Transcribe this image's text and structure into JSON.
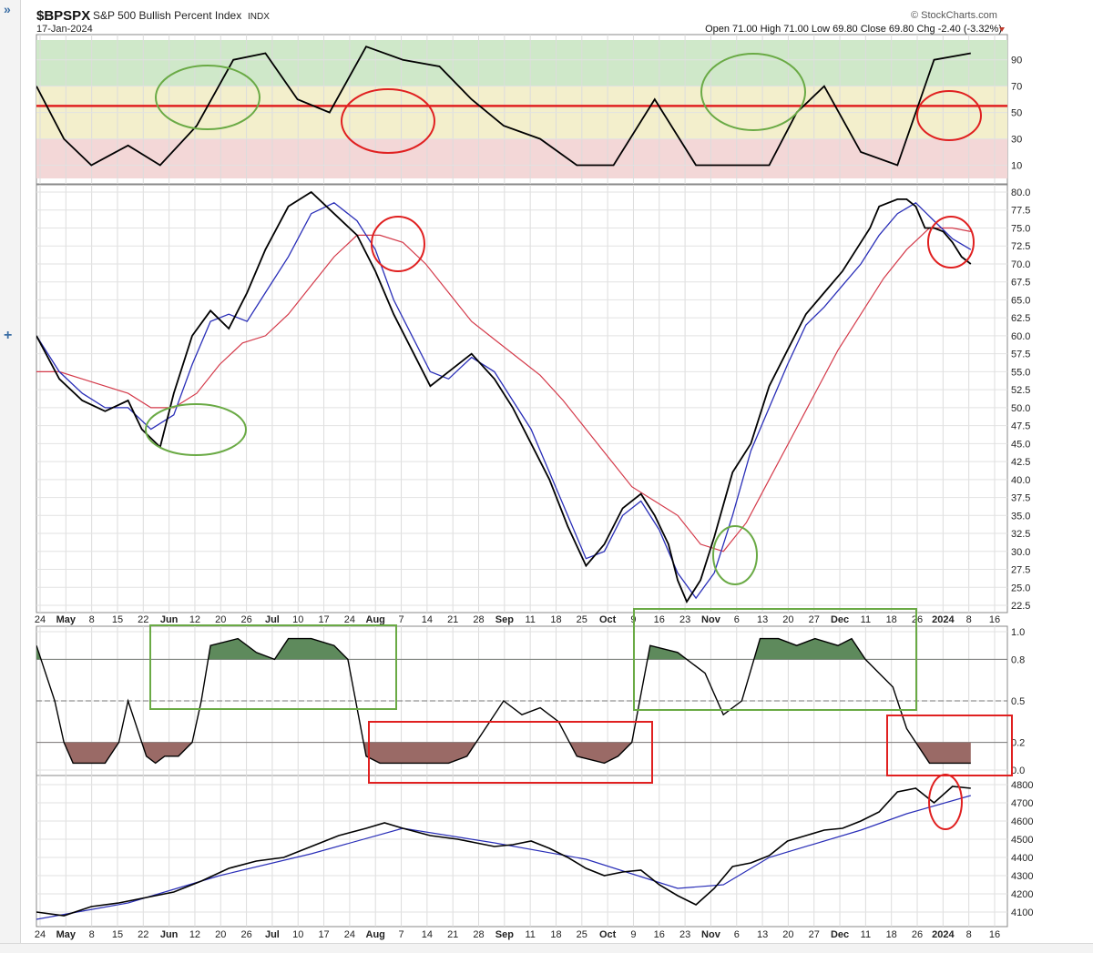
{
  "header": {
    "symbol": "$BPSPX",
    "name": "S&P 500 Bullish Percent Index",
    "exchange": "INDX",
    "date": "17-Jan-2024",
    "brand": "© StockCharts.com",
    "ohlc": "Open 71.00  High 71.00  Low 69.80  Close 69.80  Chg -2.40 (-3.32%)"
  },
  "axis_dates": [
    "24",
    "May",
    "8",
    "15",
    "22",
    "Jun",
    "12",
    "20",
    "26",
    "Jul",
    "10",
    "17",
    "24",
    "Aug",
    "7",
    "14",
    "21",
    "28",
    "Sep",
    "11",
    "18",
    "25",
    "Oct",
    "9",
    "16",
    "23",
    "Nov",
    "6",
    "13",
    "20",
    "27",
    "Dec",
    "11",
    "18",
    "26",
    "2024",
    "8",
    "16"
  ],
  "colors": {
    "price": "#000000",
    "fast_ma": "#2a2fb8",
    "slow_ma": "#d43a4a",
    "bull_zone": "#cfe8c9",
    "neutral_zone": "#f3efcc",
    "bear_zone": "#f3d7d7",
    "annotation_green": "#6aaa45",
    "annotation_red": "#e02020",
    "osc_up_fill": "#5e8a5c",
    "osc_down_fill": "#9a6a66"
  },
  "chart_data": [
    {
      "type": "line",
      "panel": "top",
      "x": [
        0,
        6,
        12,
        20,
        27,
        35,
        43,
        50,
        57,
        64,
        72,
        80,
        88,
        95,
        102,
        110,
        118,
        126,
        135,
        144,
        152,
        160,
        166,
        172,
        180,
        188,
        196,
        204
      ],
      "y": [
        70,
        30,
        10,
        25,
        10,
        40,
        90,
        95,
        60,
        50,
        100,
        90,
        85,
        60,
        40,
        30,
        10,
        10,
        60,
        10,
        10,
        10,
        50,
        70,
        20,
        10,
        90,
        95
      ],
      "ylim": [
        0,
        105
      ],
      "ticks": [
        "90",
        "70",
        "50",
        "30",
        "10"
      ],
      "reference_line": 55
    },
    {
      "type": "line",
      "panel": "main",
      "ylim": [
        22.5,
        80.0
      ],
      "ticks": [
        "80.0",
        "77.5",
        "75.0",
        "72.5",
        "70.0",
        "67.5",
        "65.0",
        "62.5",
        "60.0",
        "57.5",
        "55.0",
        "52.5",
        "50.0",
        "47.5",
        "45.0",
        "42.5",
        "40.0",
        "37.5",
        "35.0",
        "32.5",
        "30.0",
        "27.5",
        "25.0",
        "22.5"
      ],
      "series": [
        {
          "x": [
            0,
            5,
            10,
            15,
            20,
            23,
            27,
            30,
            34,
            38,
            42,
            46,
            50,
            55,
            60,
            65,
            70,
            74,
            78,
            82,
            86,
            90,
            95,
            100,
            104,
            108,
            112,
            116,
            120,
            124,
            128,
            132,
            135,
            138,
            140,
            142,
            145,
            148,
            152,
            156,
            160,
            164,
            168,
            172,
            176,
            180,
            182,
            184,
            186,
            188,
            190,
            192,
            194,
            196,
            198,
            200,
            202,
            204
          ],
          "y": [
            60,
            54,
            51,
            49.5,
            51,
            47,
            44.5,
            52,
            60,
            63.5,
            61,
            66,
            72,
            78,
            80,
            77,
            74,
            69,
            63,
            58,
            53,
            55,
            57.5,
            54,
            50,
            45,
            40,
            33.5,
            28,
            31,
            36,
            38,
            35,
            31,
            26,
            23,
            26,
            32,
            41,
            45,
            53,
            58,
            63,
            66,
            69,
            73,
            75,
            78,
            78.5,
            79,
            79,
            78,
            75,
            75,
            74.5,
            73,
            71,
            70
          ]
        },
        {
          "x": [
            0,
            5,
            10,
            15,
            20,
            25,
            30,
            34,
            38,
            42,
            46,
            50,
            55,
            60,
            65,
            70,
            74,
            78,
            82,
            86,
            90,
            95,
            100,
            104,
            108,
            112,
            116,
            120,
            124,
            128,
            132,
            136,
            140,
            144,
            148,
            152,
            156,
            160,
            164,
            168,
            172,
            176,
            180,
            184,
            188,
            192,
            196,
            200,
            204
          ],
          "y": [
            60,
            55,
            52,
            50,
            50,
            47,
            49,
            56,
            62,
            63,
            62,
            66,
            71,
            77,
            78.5,
            76,
            72,
            65,
            60,
            55,
            54,
            57,
            55,
            51,
            47,
            41,
            35,
            29,
            30,
            35,
            37,
            33,
            27,
            23.5,
            27,
            35,
            44,
            50,
            56,
            61.5,
            64,
            67,
            70,
            74,
            77,
            78.5,
            76,
            73.5,
            72
          ]
        },
        {
          "x": [
            0,
            5,
            10,
            15,
            20,
            25,
            30,
            35,
            40,
            45,
            50,
            55,
            60,
            65,
            70,
            75,
            80,
            85,
            90,
            95,
            100,
            105,
            110,
            115,
            120,
            125,
            130,
            135,
            140,
            145,
            150,
            155,
            160,
            165,
            170,
            175,
            180,
            185,
            190,
            195,
            200,
            204
          ],
          "y": [
            55,
            55,
            54,
            53,
            52,
            50,
            50,
            52,
            56,
            59,
            60,
            63,
            67,
            71,
            74,
            74,
            73,
            70,
            66,
            62,
            59.5,
            57,
            54.5,
            51,
            47,
            43,
            39,
            37,
            35,
            31,
            30,
            34,
            40,
            46,
            52,
            58,
            63,
            68,
            72,
            75,
            75,
            74.5
          ]
        }
      ]
    },
    {
      "type": "area",
      "panel": "oscillator",
      "ylim": [
        0,
        1.0
      ],
      "ticks": [
        "1.0",
        "0.8",
        "0.5",
        "0.2",
        "0.0"
      ],
      "x": [
        0,
        4,
        6,
        8,
        12,
        15,
        18,
        20,
        24,
        26,
        28,
        31,
        34,
        36,
        38,
        44,
        48,
        52,
        55,
        60,
        65,
        68,
        72,
        75,
        80,
        84,
        90,
        94,
        98,
        102,
        106,
        110,
        114,
        118,
        124,
        127,
        130,
        134,
        140,
        146,
        150,
        154,
        158,
        162,
        166,
        170,
        175,
        178,
        181,
        184,
        187,
        190,
        195,
        200,
        204
      ],
      "y": [
        0.9,
        0.5,
        0.2,
        0.05,
        0.05,
        0.05,
        0.2,
        0.5,
        0.1,
        0.05,
        0.1,
        0.1,
        0.2,
        0.5,
        0.9,
        0.95,
        0.85,
        0.8,
        0.95,
        0.95,
        0.9,
        0.8,
        0.1,
        0.05,
        0.05,
        0.05,
        0.05,
        0.1,
        0.3,
        0.5,
        0.4,
        0.45,
        0.35,
        0.1,
        0.05,
        0.1,
        0.2,
        0.9,
        0.85,
        0.7,
        0.4,
        0.5,
        0.95,
        0.95,
        0.9,
        0.95,
        0.9,
        0.95,
        0.8,
        0.7,
        0.6,
        0.3,
        0.05,
        0.05,
        0.05
      ],
      "reference_lines": [
        0.8,
        0.5,
        0.2
      ]
    },
    {
      "type": "line",
      "panel": "spx",
      "ylim": [
        4050,
        4820
      ],
      "ticks": [
        "4800",
        "4700",
        "4600",
        "4500",
        "4400",
        "4300",
        "4200",
        "4100"
      ],
      "series": [
        {
          "x": [
            0,
            6,
            12,
            18,
            24,
            30,
            36,
            42,
            48,
            54,
            60,
            66,
            72,
            76,
            80,
            86,
            92,
            96,
            100,
            104,
            108,
            112,
            116,
            120,
            124,
            128,
            132,
            136,
            140,
            144,
            148,
            152,
            156,
            160,
            164,
            168,
            172,
            176,
            180,
            184,
            188,
            192,
            196,
            200,
            204
          ],
          "y": [
            4100,
            4080,
            4130,
            4150,
            4180,
            4210,
            4270,
            4340,
            4380,
            4400,
            4460,
            4520,
            4560,
            4590,
            4560,
            4520,
            4500,
            4480,
            4460,
            4470,
            4490,
            4450,
            4400,
            4340,
            4300,
            4320,
            4330,
            4250,
            4190,
            4140,
            4230,
            4350,
            4370,
            4410,
            4490,
            4520,
            4550,
            4560,
            4600,
            4650,
            4760,
            4780,
            4700,
            4790,
            4780
          ]
        },
        {
          "x": [
            0,
            20,
            40,
            60,
            80,
            100,
            120,
            140,
            150,
            160,
            180,
            190,
            204
          ],
          "y": [
            4060,
            4150,
            4300,
            4420,
            4560,
            4480,
            4390,
            4230,
            4250,
            4400,
            4550,
            4640,
            4740
          ]
        }
      ]
    }
  ]
}
